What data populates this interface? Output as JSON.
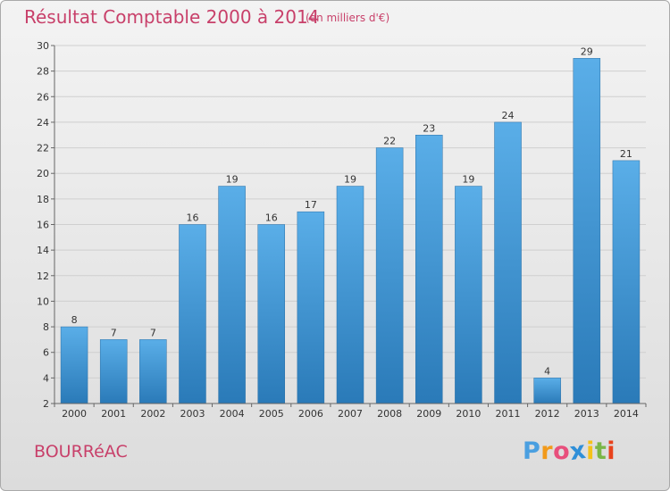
{
  "title": "Résultat Comptable 2000 à 2014",
  "subtitle": "(en milliers d'€)",
  "commune": "BOURRéAC",
  "logo": {
    "letters": [
      "P",
      "r",
      "o",
      "x",
      "i",
      "t",
      "i"
    ],
    "colors": [
      "#4a9fe0",
      "#f29a1a",
      "#e84f7c",
      "#2f8fd8",
      "#f5c21a",
      "#7ab648",
      "#e8421c"
    ]
  },
  "colors": {
    "accent": "#c8406a",
    "bar_top": "#5aaee8",
    "bar_bottom": "#2a7ab8"
  },
  "chart_data": {
    "type": "bar",
    "title": "Résultat Comptable 2000 à 2014",
    "xlabel": "",
    "ylabel": "",
    "categories": [
      "2000",
      "2001",
      "2002",
      "2003",
      "2004",
      "2005",
      "2006",
      "2007",
      "2008",
      "2009",
      "2010",
      "2011",
      "2012",
      "2013",
      "2014"
    ],
    "values": [
      8,
      7,
      7,
      16,
      19,
      16,
      17,
      19,
      22,
      23,
      19,
      24,
      4,
      29,
      21
    ],
    "ylim": [
      2,
      30
    ],
    "yticks": [
      2,
      4,
      6,
      8,
      10,
      12,
      14,
      16,
      18,
      20,
      22,
      24,
      26,
      28,
      30
    ],
    "grid": true
  }
}
